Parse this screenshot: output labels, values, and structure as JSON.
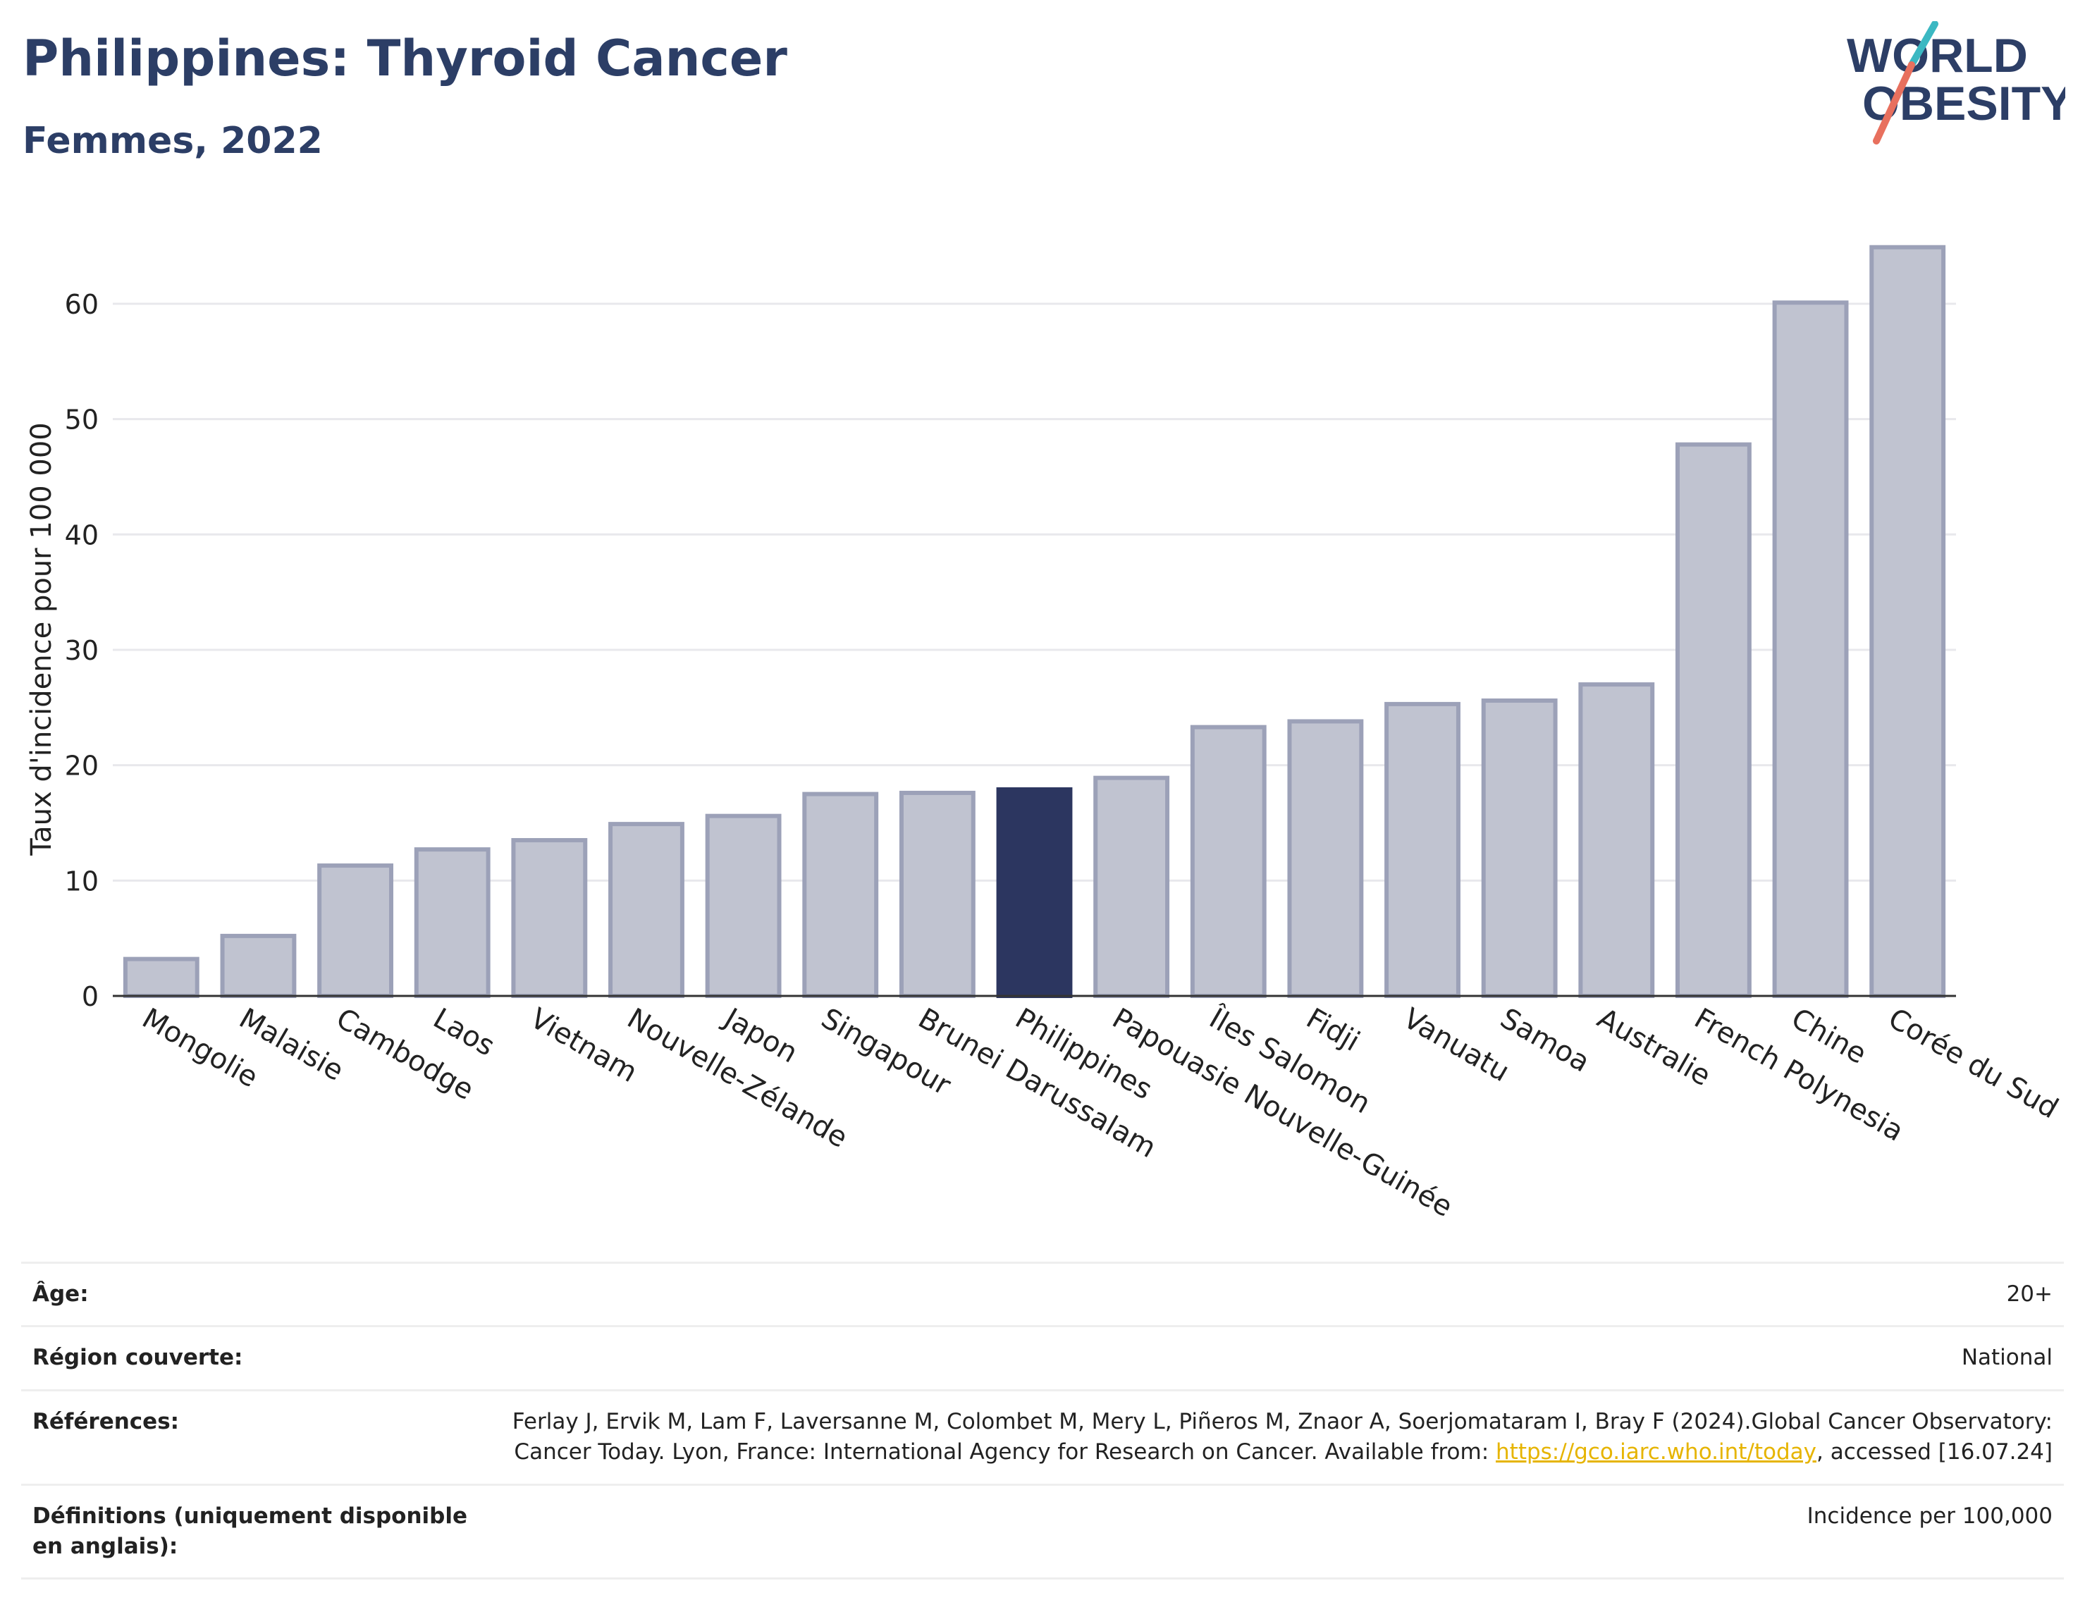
{
  "header": {
    "title": "Philippines: Thyroid Cancer",
    "subtitle": "Femmes, 2022",
    "logo_line1": "WORLD",
    "logo_line2": "OBESITY"
  },
  "colors": {
    "bar_default": "#c0c3d0",
    "bar_default_stroke": "#9ca1b8",
    "bar_highlight": "#2c3660",
    "title": "#2c3e66",
    "logo_teal": "#3bb8c2",
    "logo_red": "#e8705e"
  },
  "chart_data": {
    "type": "bar",
    "categories": [
      "Mongolie",
      "Malaisie",
      "Cambodge",
      "Laos",
      "Vietnam",
      "Nouvelle-Zélande",
      "Japon",
      "Singapour",
      "Brunei Darussalam",
      "Philippines",
      "Papouasie Nouvelle-Guinée",
      "Îles Salomon",
      "Fidji",
      "Vanuatu",
      "Samoa",
      "Australie",
      "French Polynesia",
      "Chine",
      "Corée du Sud"
    ],
    "values": [
      3.2,
      5.2,
      11.3,
      12.7,
      13.5,
      14.9,
      15.6,
      17.5,
      17.6,
      17.9,
      18.9,
      23.3,
      23.8,
      25.3,
      25.6,
      27.0,
      47.8,
      60.1,
      64.9
    ],
    "highlight": "Philippines",
    "ylabel": "Taux d'incidence pour 100 000",
    "ylim": [
      0,
      68
    ],
    "yticks": [
      0,
      10,
      20,
      30,
      40,
      50,
      60
    ],
    "grid": true
  },
  "meta": {
    "rows": [
      {
        "label": "Âge:",
        "value": "20+"
      },
      {
        "label": "Région couverte:",
        "value": "National"
      }
    ],
    "references_label": "Références:",
    "references_text": "Ferlay J, Ervik M, Lam F, Laversanne M, Colombet M, Mery L, Piñeros M, Znaor A, Soerjomataram I, Bray F (2024).Global Cancer Observatory: Cancer Today. Lyon, France: International Agency for Research on Cancer. Available from: ",
    "references_link": "https://gco.iarc.who.int/today",
    "references_tail": ", accessed [16.07.24]",
    "definitions_label": "Définitions (uniquement disponible en anglais):",
    "definitions_value": "Incidence per 100,000"
  }
}
